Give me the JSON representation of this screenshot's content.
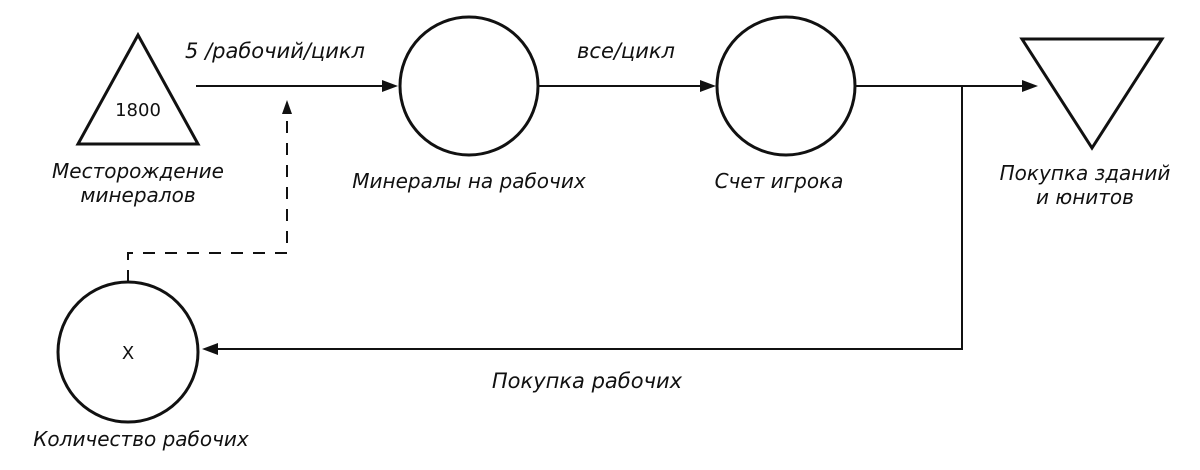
{
  "nodes": {
    "deposit": {
      "label_line1": "Месторождение",
      "label_line2": "минералов",
      "value": "1800",
      "shape": "triangle-up"
    },
    "worker_minerals": {
      "label": "Минералы на рабочих",
      "shape": "circle"
    },
    "player_score": {
      "label": "Счет игрока",
      "shape": "circle"
    },
    "purchases": {
      "label_line1": "Покупка зданий",
      "label_line2": "и юнитов",
      "shape": "triangle-down"
    },
    "worker_count": {
      "label": "Количество рабочих",
      "value": "X",
      "shape": "circle"
    }
  },
  "edges": {
    "deposit_to_workers": {
      "label": "5 /рабочий/цикл"
    },
    "workers_to_score": {
      "label": "все/цикл"
    },
    "score_to_purchases": {
      "label": ""
    },
    "buy_workers": {
      "label": "Покупка рабочих"
    },
    "worker_count_modifier": {
      "label": "",
      "style": "dashed"
    }
  },
  "colors": {
    "ink": "#111111",
    "background": "#ffffff"
  }
}
